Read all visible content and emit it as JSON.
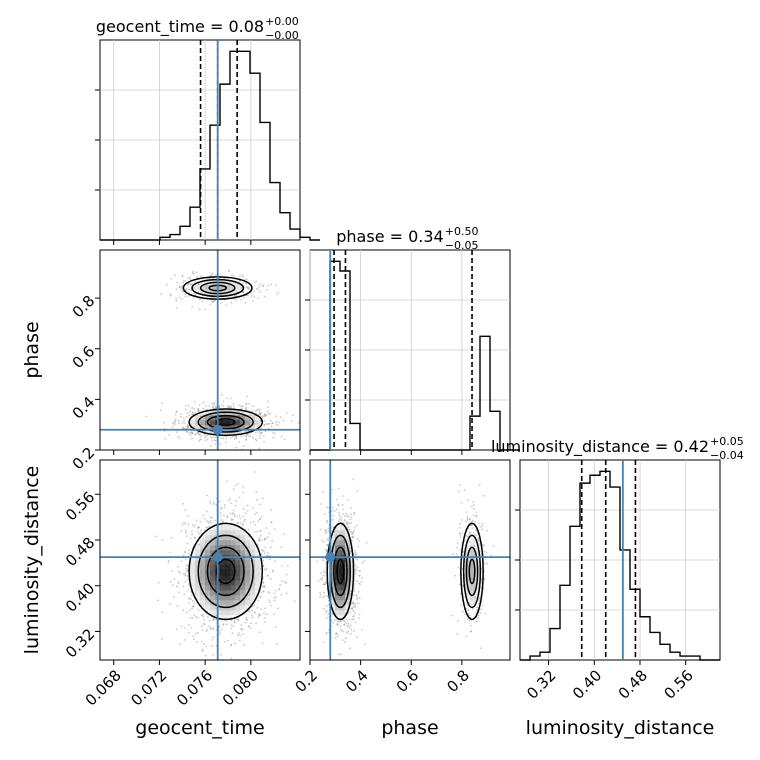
{
  "chart_data": {
    "type": "corner",
    "parameters": [
      {
        "name": "geocent_time",
        "title_text": "geocent_time = 0.08",
        "title_plus": "+0.00",
        "title_minus": "−0.00",
        "range": [
          0.0668,
          0.0843
        ],
        "ticks": [
          "0.068",
          "0.072",
          "0.076",
          "0.080"
        ],
        "tick_values": [
          0.068,
          0.072,
          0.076,
          0.08
        ],
        "truth": 0.0771,
        "quantiles": [
          0.0756,
          0.0771,
          0.0788
        ],
        "hist": {
          "start": 0.0668,
          "step": 0.000875,
          "counts": [
            0,
            0,
            0,
            0,
            0,
            0,
            1,
            2,
            5,
            12,
            26,
            42,
            57,
            69,
            69,
            61,
            43,
            21,
            10,
            4,
            1,
            0
          ]
        }
      },
      {
        "name": "phase",
        "title_text": "phase = 0.34",
        "title_plus": "+0.50",
        "title_minus": "−0.05",
        "range": [
          0.2,
          0.99
        ],
        "ticks": [
          "0.2",
          "0.4",
          "0.6",
          "0.8"
        ],
        "tick_values": [
          0.2,
          0.4,
          0.6,
          0.8
        ],
        "truth": 0.28,
        "quantiles": [
          0.295,
          0.34,
          0.84
        ],
        "hist": {
          "start": 0.2,
          "step": 0.0395,
          "counts": [
            0,
            0,
            78,
            74,
            11,
            0,
            0,
            0,
            0,
            0,
            0,
            0,
            0,
            0,
            0,
            0,
            14,
            47,
            16,
            0,
            0
          ]
        }
      },
      {
        "name": "luminosity_distance",
        "title_text": "luminosity_distance = 0.42",
        "title_plus": "+0.05",
        "title_minus": "−0.04",
        "range": [
          0.27,
          0.62
        ],
        "ticks": [
          "0.32",
          "0.40",
          "0.48",
          "0.56"
        ],
        "tick_values": [
          0.32,
          0.4,
          0.48,
          0.56
        ],
        "truth": 0.45,
        "quantiles": [
          0.378,
          0.42,
          0.472
        ],
        "hist": {
          "start": 0.27,
          "step": 0.0175,
          "counts": [
            0,
            1,
            2,
            8,
            19,
            34,
            45,
            47,
            48,
            44,
            28,
            18,
            11,
            7,
            4,
            2,
            1,
            1,
            0,
            0
          ]
        }
      }
    ],
    "scatter_panels": [
      {
        "x_param": "geocent_time",
        "y_param": "phase",
        "modes": [
          {
            "cx": 0.0771,
            "cy": 0.84,
            "sx": 0.0015,
            "sy": 0.022,
            "weight": 0.28
          },
          {
            "cx": 0.0778,
            "cy": 0.31,
            "sx": 0.0016,
            "sy": 0.026,
            "weight": 0.72
          }
        ]
      },
      {
        "x_param": "geocent_time",
        "y_param": "luminosity_distance",
        "modes": [
          {
            "cx": 0.0778,
            "cy": 0.425,
            "sx": 0.0016,
            "sy": 0.042,
            "weight": 1.0
          }
        ]
      },
      {
        "x_param": "phase",
        "y_param": "luminosity_distance",
        "modes": [
          {
            "cx": 0.32,
            "cy": 0.425,
            "sx": 0.026,
            "sy": 0.042,
            "weight": 0.72
          },
          {
            "cx": 0.84,
            "cy": 0.425,
            "sx": 0.022,
            "sy": 0.042,
            "weight": 0.28
          }
        ]
      }
    ],
    "truth_color": "#4682b4",
    "hist_color": "#000000",
    "grid": true
  }
}
